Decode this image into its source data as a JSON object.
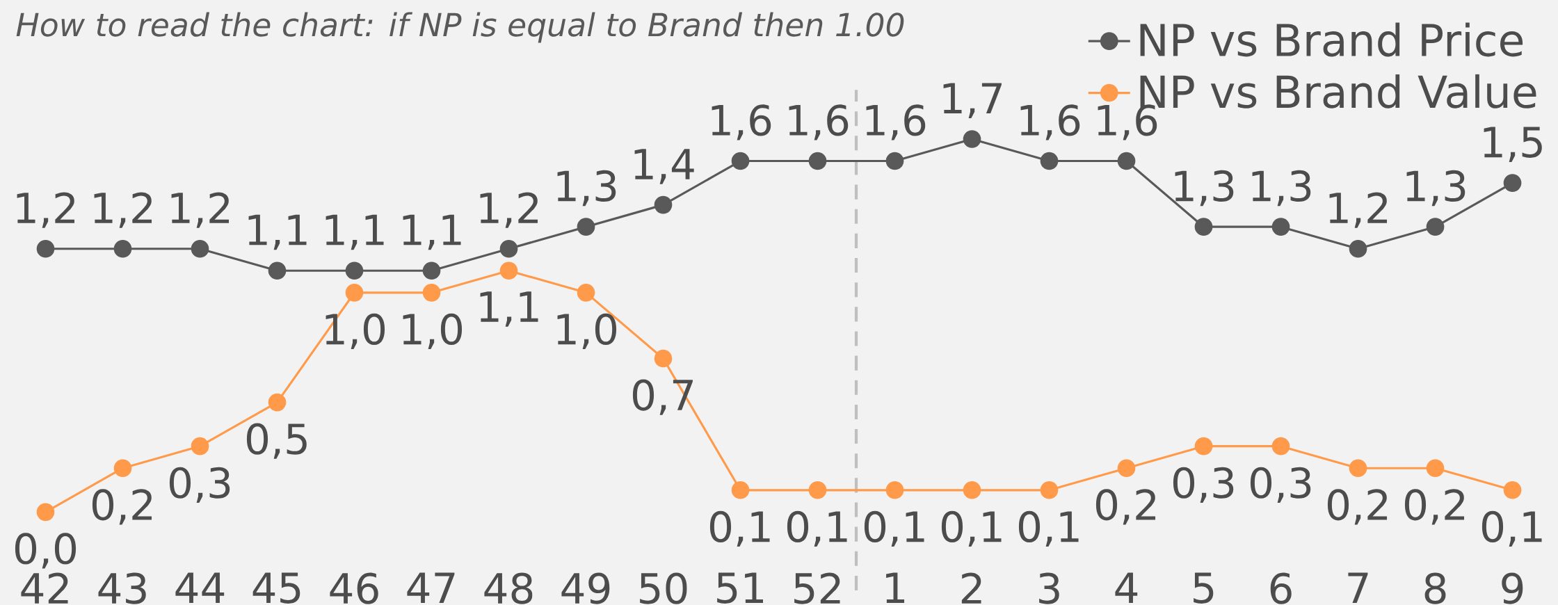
{
  "chart_data": {
    "type": "line",
    "annotations": [
      "How to read the chart: if NP is equal to Brand then 1.00"
    ],
    "categories": [
      "42",
      "43",
      "44",
      "45",
      "46",
      "47",
      "48",
      "49",
      "50",
      "51",
      "52",
      "1",
      "2",
      "3",
      "4",
      "5",
      "6",
      "7",
      "8",
      "9"
    ],
    "series": [
      {
        "name": "NP vs Brand Price",
        "color": "#595959",
        "values": [
          1.2,
          1.2,
          1.2,
          1.1,
          1.1,
          1.1,
          1.2,
          1.3,
          1.4,
          1.6,
          1.6,
          1.6,
          1.7,
          1.6,
          1.6,
          1.3,
          1.3,
          1.2,
          1.3,
          1.5
        ],
        "value_labels": [
          "1,2",
          "1,2",
          "1,2",
          "1,1",
          "1,1",
          "1,1",
          "1,2",
          "1,3",
          "1,4",
          "1,6",
          "1,6",
          "1,6",
          "1,7",
          "1,6",
          "1,6",
          "1,3",
          "1,3",
          "1,2",
          "1,3",
          "1,5"
        ]
      },
      {
        "name": "NP vs Brand Value",
        "color": "#ff9a4a",
        "values": [
          0.0,
          0.2,
          0.3,
          0.5,
          1.0,
          1.0,
          1.1,
          1.0,
          0.7,
          0.1,
          0.1,
          0.1,
          0.1,
          0.1,
          0.2,
          0.3,
          0.3,
          0.2,
          0.2,
          0.1
        ],
        "value_labels": [
          "0,0",
          "0,2",
          "0,3",
          "0,5",
          "1,0",
          "1,0",
          "1,1",
          "1,0",
          "0,7",
          "0,1",
          "0,1",
          "0,1",
          "0,1",
          "0,1",
          "0,2",
          "0,3",
          "0,3",
          "0,2",
          "0,2",
          "0,1"
        ]
      }
    ],
    "legend": "top right",
    "marker": "circle",
    "line_style": "solid",
    "grid": false
  }
}
